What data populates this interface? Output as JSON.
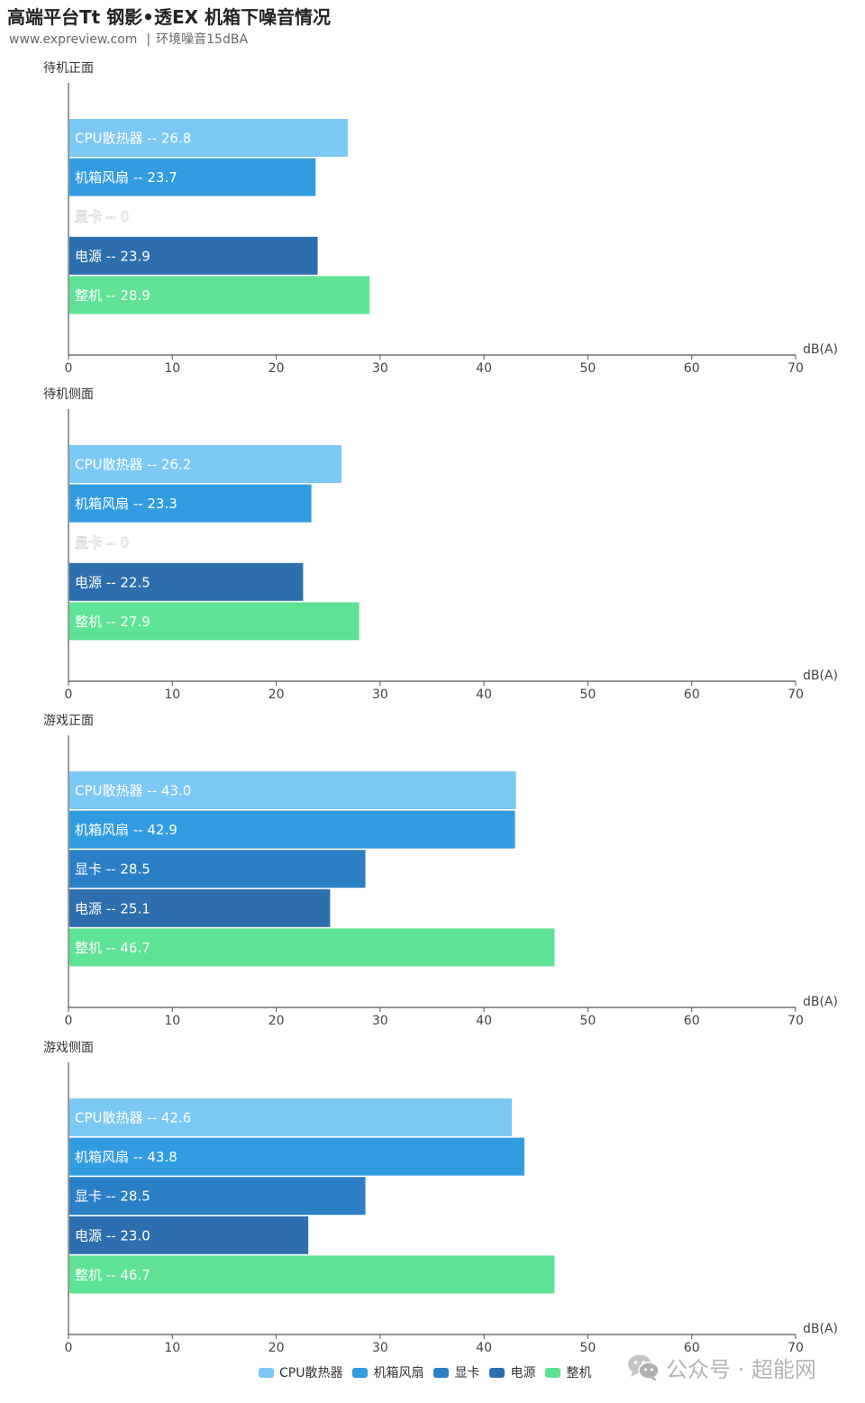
{
  "header": {
    "title": "高端平台Tt 钢影•透EX 机箱下噪音情况",
    "source": "www.expreview.com",
    "separator": "|",
    "note": "环境噪音15dBA"
  },
  "colors": {
    "CPU散热器": "#7cc8f4",
    "机箱风扇": "#329ce0",
    "显卡": "#2b7fc6",
    "电源": "#2d6fae",
    "整机": "#5ee295"
  },
  "chart_data": [
    {
      "type": "bar",
      "orientation": "horizontal",
      "title": "待机正面",
      "unit": "dB(A)",
      "xlim": [
        0,
        70
      ],
      "ticks": [
        0,
        10,
        20,
        30,
        40,
        50,
        60,
        70
      ],
      "categories": [
        "CPU散热器",
        "机箱风扇",
        "显卡",
        "电源",
        "整机"
      ],
      "values": [
        26.8,
        23.7,
        0,
        23.9,
        28.9
      ],
      "labels": [
        "CPU散热器 -- 26.8",
        "机箱风扇 -- 23.7",
        "显卡 -- 0",
        "电源 -- 23.9",
        "整机 -- 28.9"
      ]
    },
    {
      "type": "bar",
      "orientation": "horizontal",
      "title": "待机侧面",
      "unit": "dB(A)",
      "xlim": [
        0,
        70
      ],
      "ticks": [
        0,
        10,
        20,
        30,
        40,
        50,
        60,
        70
      ],
      "categories": [
        "CPU散热器",
        "机箱风扇",
        "显卡",
        "电源",
        "整机"
      ],
      "values": [
        26.2,
        23.3,
        0,
        22.5,
        27.9
      ],
      "labels": [
        "CPU散热器 -- 26.2",
        "机箱风扇 -- 23.3",
        "显卡 -- 0",
        "电源 -- 22.5",
        "整机 -- 27.9"
      ]
    },
    {
      "type": "bar",
      "orientation": "horizontal",
      "title": "游戏正面",
      "unit": "dB(A)",
      "xlim": [
        0,
        70
      ],
      "ticks": [
        0,
        10,
        20,
        30,
        40,
        50,
        60,
        70
      ],
      "categories": [
        "CPU散热器",
        "机箱风扇",
        "显卡",
        "电源",
        "整机"
      ],
      "values": [
        43.0,
        42.9,
        28.5,
        25.1,
        46.7
      ],
      "labels": [
        "CPU散热器 -- 43.0",
        "机箱风扇 -- 42.9",
        "显卡 -- 28.5",
        "电源 -- 25.1",
        "整机 -- 46.7"
      ]
    },
    {
      "type": "bar",
      "orientation": "horizontal",
      "title": "游戏侧面",
      "unit": "dB(A)",
      "xlim": [
        0,
        70
      ],
      "ticks": [
        0,
        10,
        20,
        30,
        40,
        50,
        60,
        70
      ],
      "categories": [
        "CPU散热器",
        "机箱风扇",
        "显卡",
        "电源",
        "整机"
      ],
      "values": [
        42.6,
        43.8,
        28.5,
        23.0,
        46.7
      ],
      "labels": [
        "CPU散热器 -- 42.6",
        "机箱风扇 -- 43.8",
        "显卡 -- 28.5",
        "电源 -- 23.0",
        "整机 -- 46.7"
      ]
    }
  ],
  "legend": {
    "placement": "bottom",
    "items": [
      {
        "label": "CPU散热器",
        "color": "#7cc8f4"
      },
      {
        "label": "机箱风扇",
        "color": "#329ce0"
      },
      {
        "label": "显卡",
        "color": "#2b7fc6"
      },
      {
        "label": "电源",
        "color": "#2d6fae"
      },
      {
        "label": "整机",
        "color": "#5ee295"
      }
    ]
  },
  "watermark": {
    "icon": "wechat-icon",
    "text": "公众号 · 超能网"
  }
}
